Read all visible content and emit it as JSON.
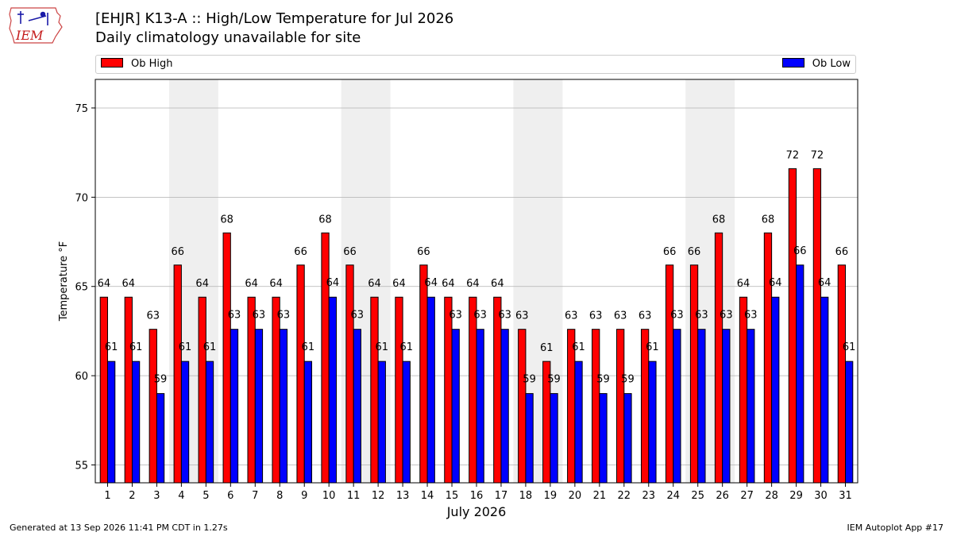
{
  "logo": {
    "text": "IEM"
  },
  "header": {
    "title": "[EHJR] K13-A :: High/Low Temperature for Jul 2026",
    "subtitle": "Daily climatology unavailable for site"
  },
  "footer": {
    "left": "Generated at 13 Sep 2026 11:41 PM CDT in 1.27s",
    "right": "IEM Autoplot App #17"
  },
  "colors": {
    "high": "#ff0000",
    "low": "#0000ff",
    "weekend": "#efefef",
    "grid": "#b0b0b0"
  },
  "chart_data": {
    "type": "bar",
    "title": "[EHJR] K13-A :: High/Low Temperature for Jul 2026",
    "subtitle": "Daily climatology unavailable for site",
    "xlabel": "July 2026",
    "ylabel": "Temperature °F",
    "ylim": [
      54,
      76.6
    ],
    "yticks": [
      55,
      60,
      65,
      70,
      75
    ],
    "grid": "horizontal",
    "legend_placement": "top",
    "categories": [
      "1",
      "2",
      "3",
      "4",
      "5",
      "6",
      "7",
      "8",
      "9",
      "10",
      "11",
      "12",
      "13",
      "14",
      "15",
      "16",
      "17",
      "18",
      "19",
      "20",
      "21",
      "22",
      "23",
      "24",
      "25",
      "26",
      "27",
      "28",
      "29",
      "30",
      "31"
    ],
    "weekend_days": [
      [
        "4",
        "5"
      ],
      [
        "11",
        "12"
      ],
      [
        "18",
        "19"
      ],
      [
        "25",
        "26"
      ]
    ],
    "series": [
      {
        "name": "Ob High",
        "color": "#ff0000",
        "values": [
          64.4,
          64.4,
          62.6,
          66.2,
          64.4,
          68.0,
          64.4,
          64.4,
          66.2,
          68.0,
          66.2,
          64.4,
          64.4,
          66.2,
          64.4,
          64.4,
          64.4,
          62.6,
          60.8,
          62.6,
          62.6,
          62.6,
          62.6,
          66.2,
          66.2,
          68.0,
          64.4,
          68.0,
          71.6,
          71.6,
          66.2
        ],
        "labels": [
          "64",
          "64",
          "63",
          "66",
          "64",
          "68",
          "64",
          "64",
          "66",
          "68",
          "66",
          "64",
          "64",
          "66",
          "64",
          "64",
          "64",
          "63",
          "61",
          "63",
          "63",
          "63",
          "63",
          "66",
          "66",
          "68",
          "64",
          "68",
          "72",
          "72",
          "66"
        ]
      },
      {
        "name": "Ob Low",
        "color": "#0000ff",
        "values": [
          60.8,
          60.8,
          59.0,
          60.8,
          60.8,
          62.6,
          62.6,
          62.6,
          60.8,
          64.4,
          62.6,
          60.8,
          60.8,
          64.4,
          62.6,
          62.6,
          62.6,
          59.0,
          59.0,
          60.8,
          59.0,
          59.0,
          60.8,
          62.6,
          62.6,
          62.6,
          62.6,
          64.4,
          66.2,
          64.4,
          60.8
        ],
        "labels": [
          "61",
          "61",
          "59",
          "61",
          "61",
          "63",
          "63",
          "63",
          "61",
          "64",
          "63",
          "61",
          "61",
          "64",
          "63",
          "63",
          "63",
          "59",
          "59",
          "61",
          "59",
          "59",
          "61",
          "63",
          "63",
          "63",
          "63",
          "64",
          "66",
          "64",
          "61"
        ]
      }
    ]
  }
}
